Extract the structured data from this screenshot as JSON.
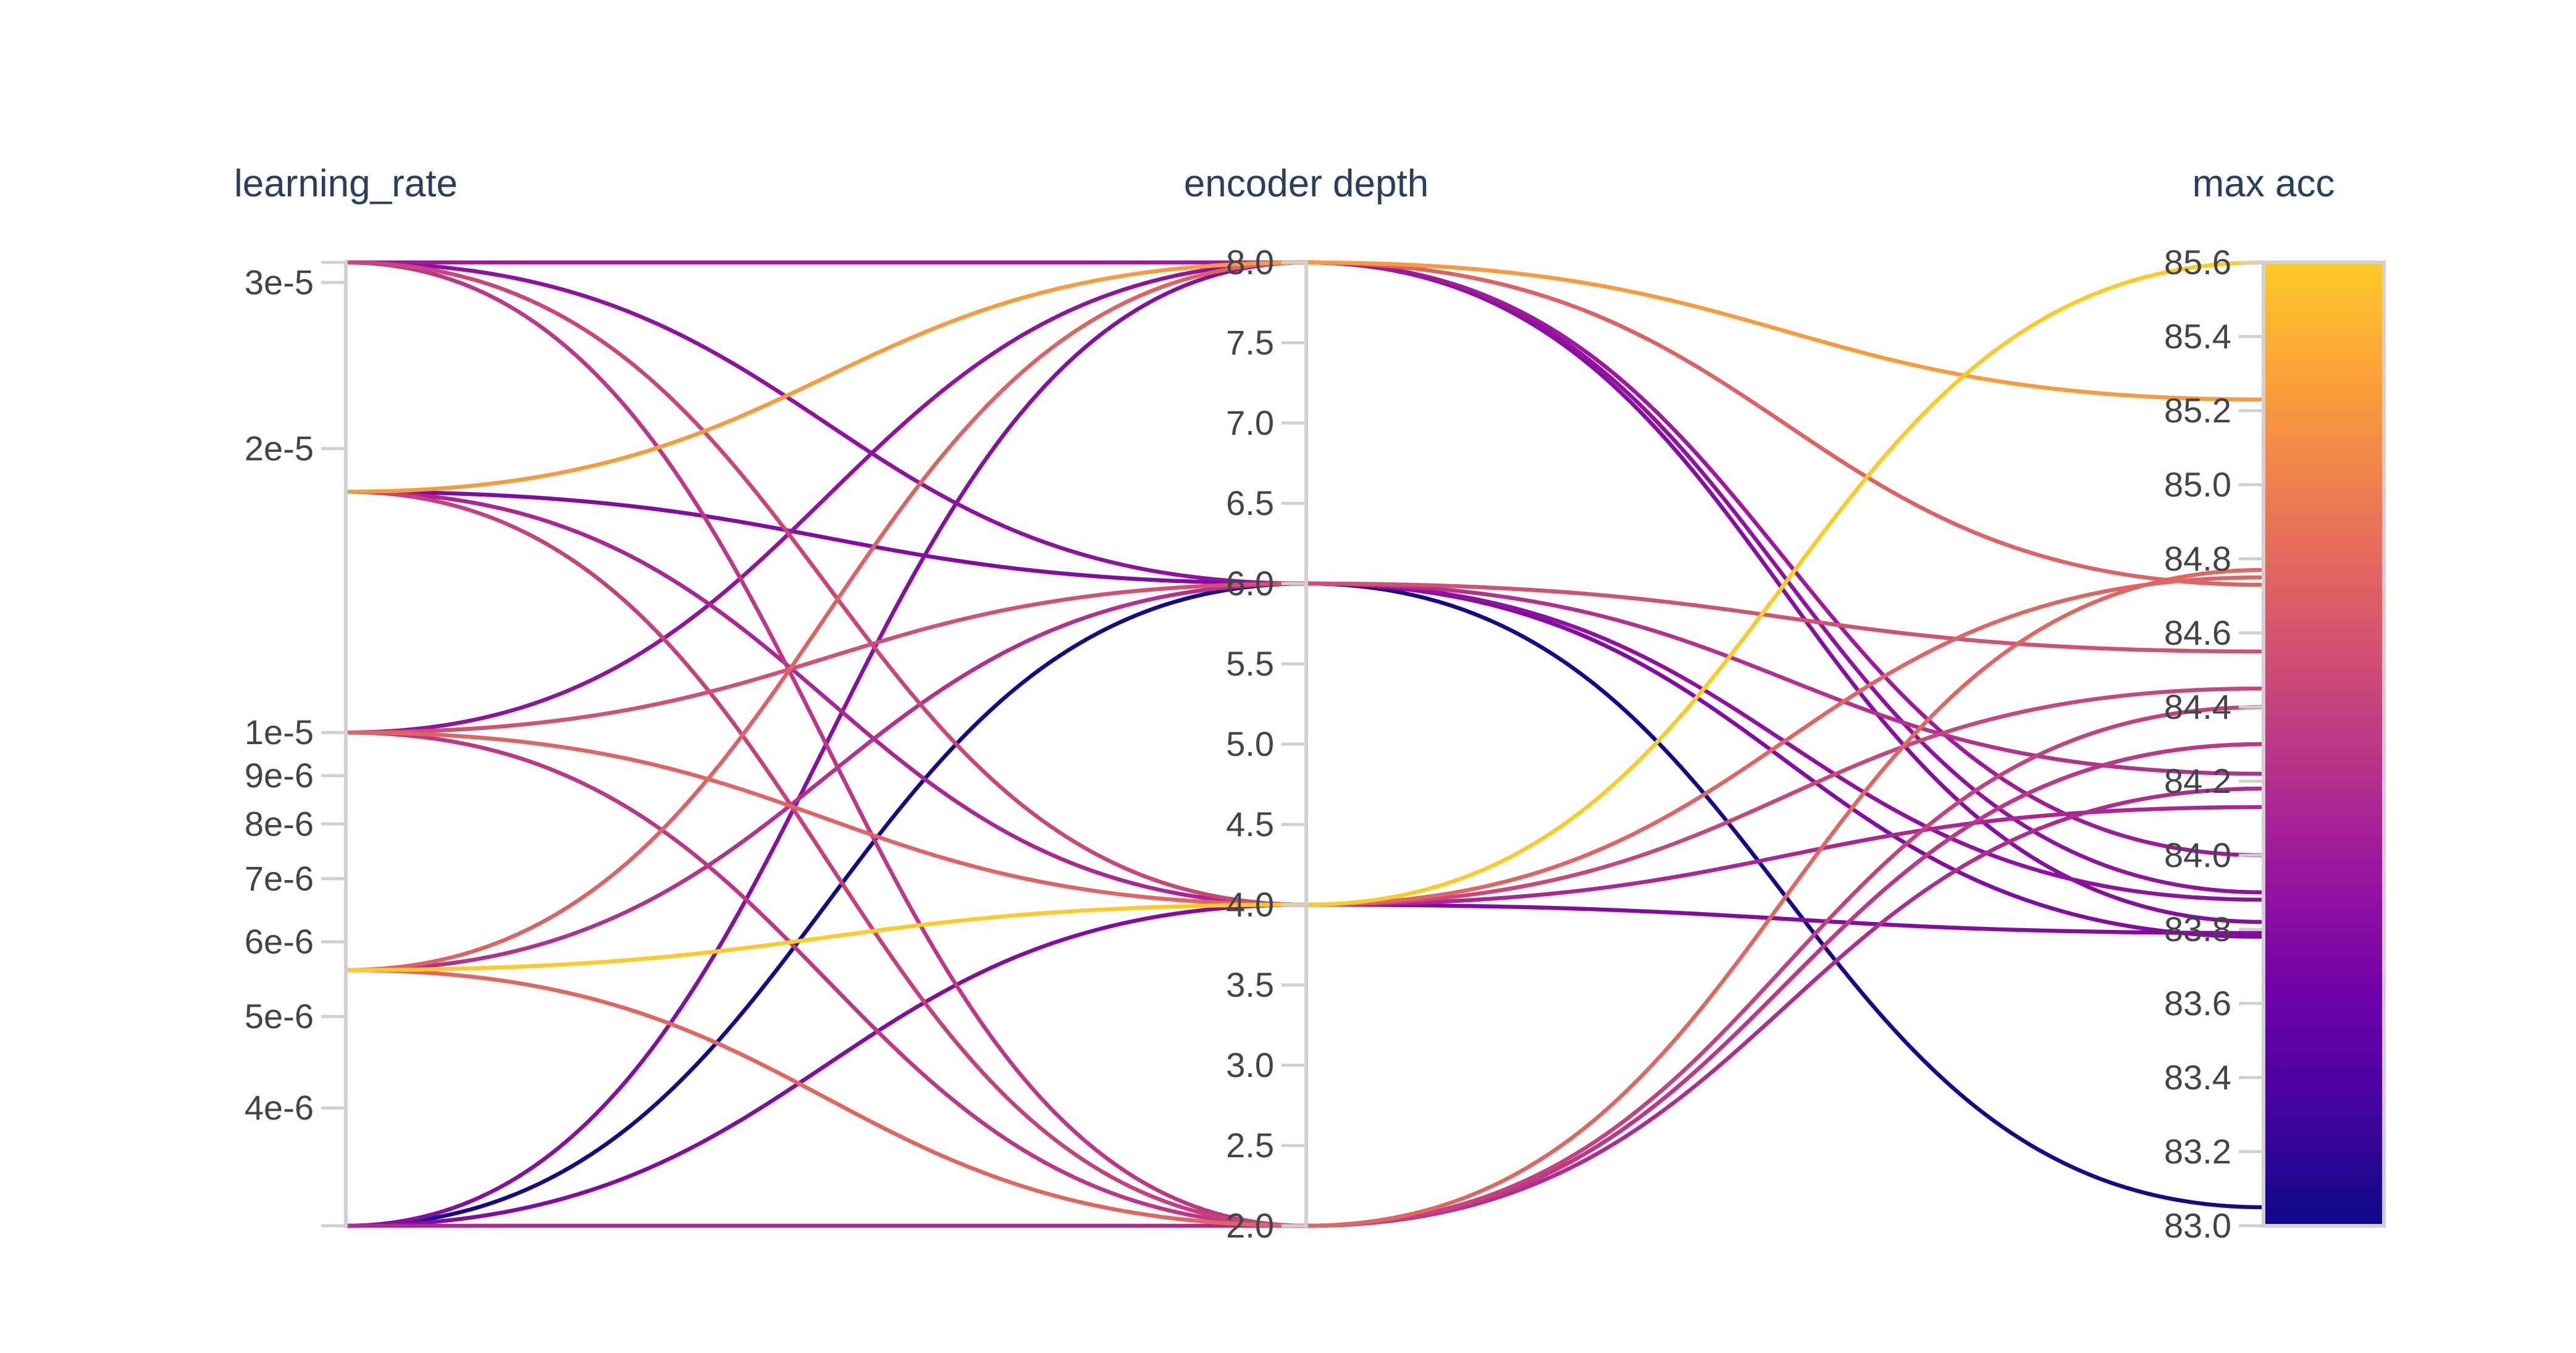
{
  "chart_data": {
    "type": "parallel_coordinates",
    "axes": [
      {
        "name": "learning_rate",
        "scale": "log",
        "range": [
          3e-06,
          3.15e-05
        ],
        "ticks": [
          {
            "value": 3e-05,
            "label": "3e-5"
          },
          {
            "value": 2e-05,
            "label": "2e-5"
          },
          {
            "value": 1e-05,
            "label": "1e-5"
          },
          {
            "value": 9e-06,
            "label": "9e-6"
          },
          {
            "value": 8e-06,
            "label": "8e-6"
          },
          {
            "value": 7e-06,
            "label": "7e-6"
          },
          {
            "value": 6e-06,
            "label": "6e-6"
          },
          {
            "value": 5e-06,
            "label": "5e-6"
          },
          {
            "value": 4e-06,
            "label": "4e-6"
          }
        ]
      },
      {
        "name": "encoder depth",
        "scale": "linear",
        "range": [
          2.0,
          8.0
        ],
        "ticks": [
          {
            "value": 8.0,
            "label": "8.0"
          },
          {
            "value": 7.5,
            "label": "7.5"
          },
          {
            "value": 7.0,
            "label": "7.0"
          },
          {
            "value": 6.5,
            "label": "6.5"
          },
          {
            "value": 6.0,
            "label": "6.0"
          },
          {
            "value": 5.5,
            "label": "5.5"
          },
          {
            "value": 5.0,
            "label": "5.0"
          },
          {
            "value": 4.5,
            "label": "4.5"
          },
          {
            "value": 4.0,
            "label": "4.0"
          },
          {
            "value": 3.5,
            "label": "3.5"
          },
          {
            "value": 3.0,
            "label": "3.0"
          },
          {
            "value": 2.5,
            "label": "2.5"
          },
          {
            "value": 2.0,
            "label": "2.0"
          }
        ]
      },
      {
        "name": "max acc",
        "scale": "linear",
        "range": [
          83.0,
          85.6
        ],
        "ticks": [
          {
            "value": 85.6,
            "label": "85.6"
          },
          {
            "value": 85.4,
            "label": "85.4"
          },
          {
            "value": 85.2,
            "label": "85.2"
          },
          {
            "value": 85.0,
            "label": "85.0"
          },
          {
            "value": 84.8,
            "label": "84.8"
          },
          {
            "value": 84.6,
            "label": "84.6"
          },
          {
            "value": 84.4,
            "label": "84.4"
          },
          {
            "value": 84.2,
            "label": "84.2"
          },
          {
            "value": 84.0,
            "label": "84.0"
          },
          {
            "value": 83.8,
            "label": "83.8"
          },
          {
            "value": 83.6,
            "label": "83.6"
          },
          {
            "value": 83.4,
            "label": "83.4"
          },
          {
            "value": 83.2,
            "label": "83.2"
          },
          {
            "value": 83.0,
            "label": "83.0"
          }
        ]
      }
    ],
    "colorscale": {
      "name": "plasma",
      "domain": [
        83.0,
        85.6
      ],
      "stops": [
        "#0d0887",
        "#46039f",
        "#7201a8",
        "#9c179e",
        "#bd3786",
        "#d8576b",
        "#ed7953",
        "#fb9f3a",
        "#fdca26"
      ]
    },
    "runs": [
      {
        "lr": 3.15e-05,
        "depth": 8,
        "acc": 84.0
      },
      {
        "lr": 3.15e-05,
        "depth": 6,
        "acc": 83.88
      },
      {
        "lr": 3.15e-05,
        "depth": 4,
        "acc": 84.45
      },
      {
        "lr": 3.15e-05,
        "depth": 2,
        "acc": 84.3
      },
      {
        "lr": 1.8e-05,
        "depth": 8,
        "acc": 85.23
      },
      {
        "lr": 1.8e-05,
        "depth": 6,
        "acc": 83.78
      },
      {
        "lr": 1.8e-05,
        "depth": 4,
        "acc": 84.13
      },
      {
        "lr": 1.8e-05,
        "depth": 2,
        "acc": 84.4
      },
      {
        "lr": 1e-05,
        "depth": 8,
        "acc": 83.9
      },
      {
        "lr": 1e-05,
        "depth": 6,
        "acc": 84.55
      },
      {
        "lr": 1e-05,
        "depth": 4,
        "acc": 84.75
      },
      {
        "lr": 1e-05,
        "depth": 2,
        "acc": 84.3
      },
      {
        "lr": 5.6e-06,
        "depth": 8,
        "acc": 84.73
      },
      {
        "lr": 5.6e-06,
        "depth": 6,
        "acc": 84.22
      },
      {
        "lr": 5.6e-06,
        "depth": 4,
        "acc": 85.6
      },
      {
        "lr": 5.6e-06,
        "depth": 2,
        "acc": 84.77
      },
      {
        "lr": 3e-06,
        "depth": 8,
        "acc": 83.82
      },
      {
        "lr": 3e-06,
        "depth": 6,
        "acc": 83.05
      },
      {
        "lr": 3e-06,
        "depth": 4,
        "acc": 83.79
      },
      {
        "lr": 3e-06,
        "depth": 2,
        "acc": 84.18
      }
    ]
  }
}
